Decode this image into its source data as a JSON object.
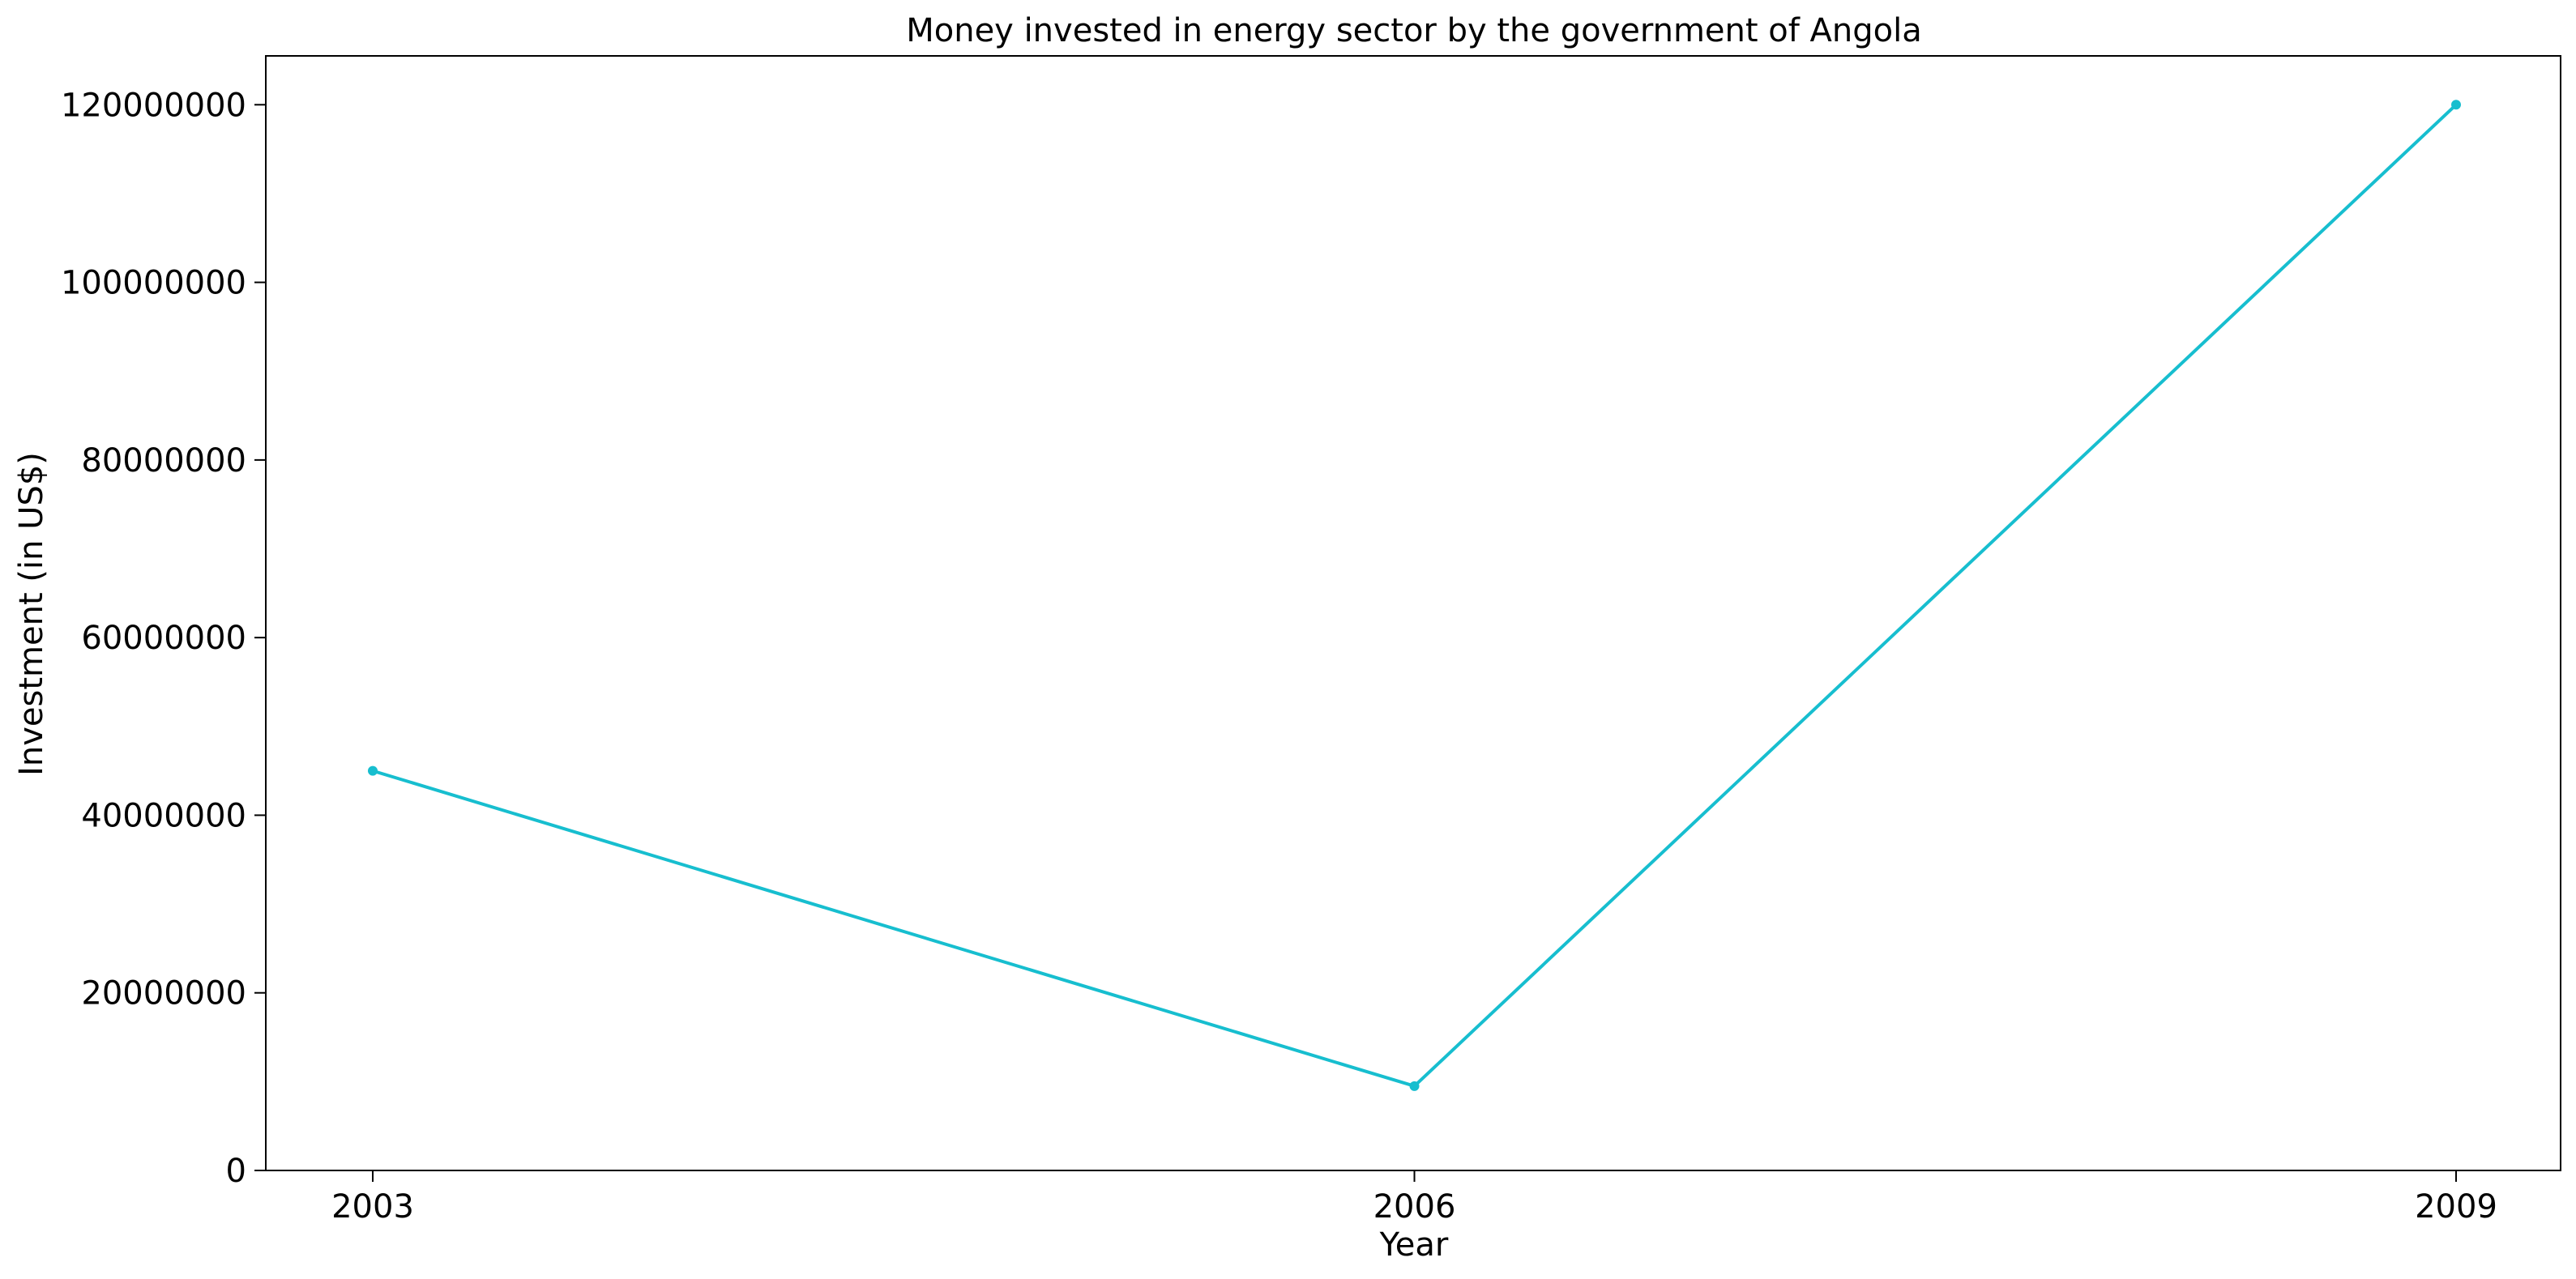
{
  "chart_data": {
    "type": "line",
    "title": "Money invested in energy sector by the government of Angola",
    "xlabel": "Year",
    "ylabel": "Investment (in US$)",
    "categories": [
      "2003",
      "2006",
      "2009"
    ],
    "series": [
      {
        "values": [
          45000000,
          9500000,
          120000000
        ],
        "color": "#17becf",
        "marker": "circle"
      }
    ],
    "ylim": [
      0,
      125500000
    ],
    "yticks": [
      0,
      20000000,
      40000000,
      60000000,
      80000000,
      100000000,
      120000000
    ],
    "ytick_labels": [
      "0",
      "20000000",
      "40000000",
      "60000000",
      "80000000",
      "100000000",
      "120000000"
    ],
    "grid": false,
    "legend": false
  }
}
